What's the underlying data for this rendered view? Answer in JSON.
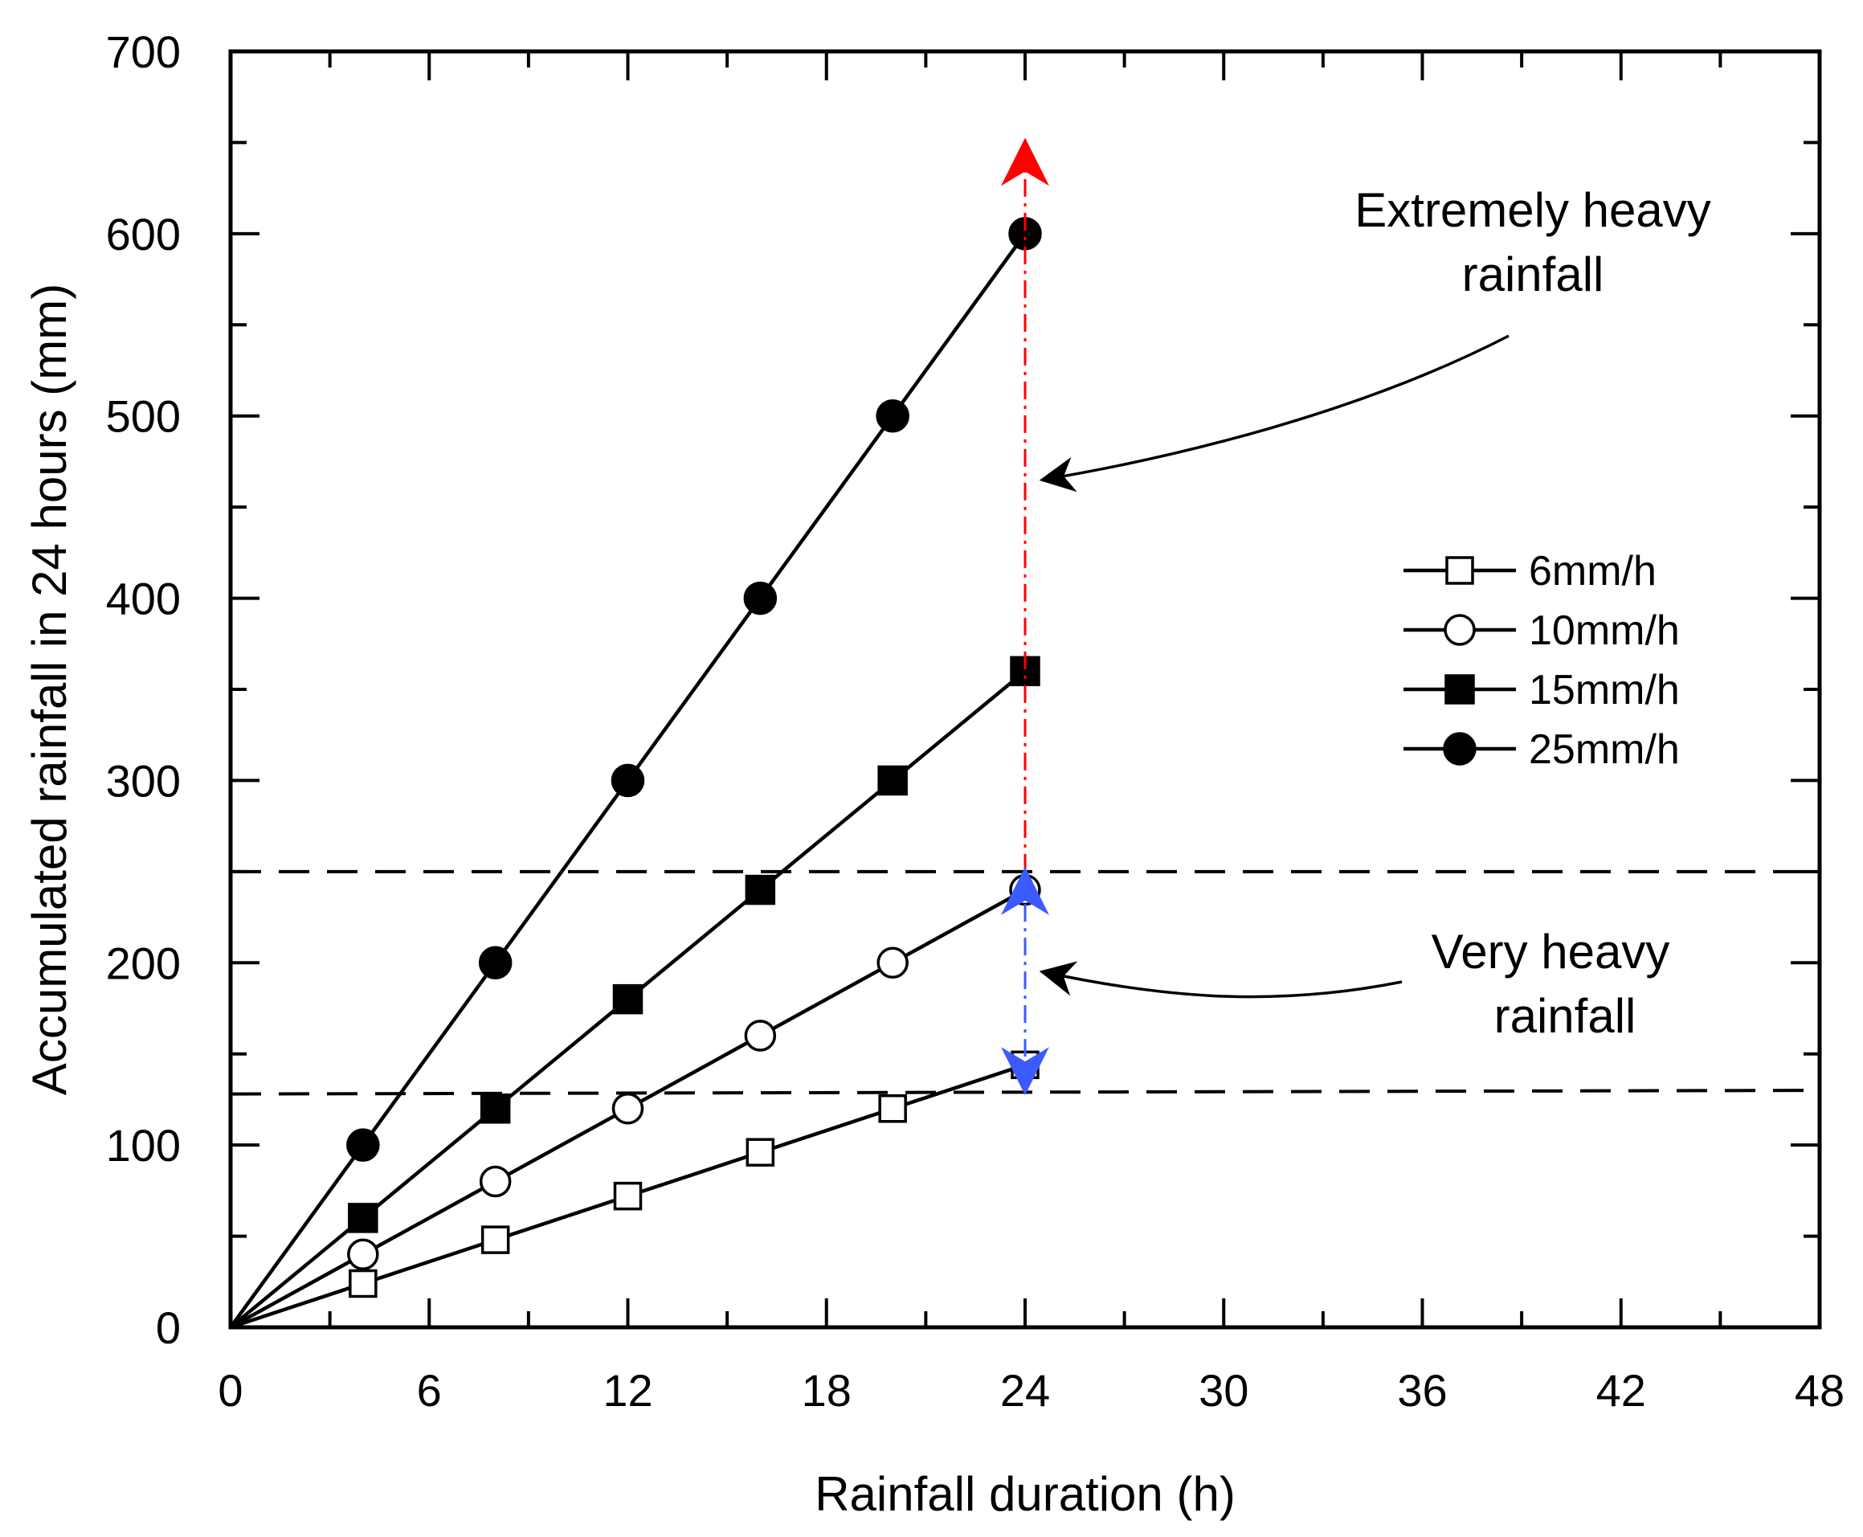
{
  "chart_data": {
    "type": "line",
    "title": "",
    "xlabel": "Rainfall duration (h)",
    "ylabel": "Accumulated rainfall in 24 hours (mm)",
    "xlim": [
      0,
      48
    ],
    "ylim": [
      0,
      700
    ],
    "xticks": [
      0,
      6,
      12,
      18,
      24,
      30,
      36,
      42,
      48
    ],
    "yticks": [
      0,
      100,
      200,
      300,
      400,
      500,
      600,
      700
    ],
    "x_tick_labels": [
      "0",
      "6",
      "12",
      "18",
      "24",
      "30",
      "36",
      "42",
      "48"
    ],
    "y_tick_labels": [
      "0",
      "100",
      "200",
      "300",
      "400",
      "500",
      "600",
      "700"
    ],
    "grid": false,
    "legend_position": "right-middle",
    "series": [
      {
        "name": "6mm/h",
        "marker": "square-open",
        "x": [
          0,
          4,
          8,
          12,
          16,
          20,
          24
        ],
        "values": [
          0,
          24,
          48,
          72,
          96,
          120,
          144
        ]
      },
      {
        "name": "10mm/h",
        "marker": "circle-open",
        "x": [
          0,
          4,
          8,
          12,
          16,
          20,
          24
        ],
        "values": [
          0,
          40,
          80,
          120,
          160,
          200,
          240
        ]
      },
      {
        "name": "15mm/h",
        "marker": "square-filled",
        "x": [
          0,
          4,
          8,
          12,
          16,
          20,
          24
        ],
        "values": [
          0,
          60,
          120,
          180,
          240,
          300,
          360
        ]
      },
      {
        "name": "25mm/h",
        "marker": "circle-filled",
        "x": [
          0,
          4,
          8,
          12,
          16,
          20,
          24
        ],
        "values": [
          0,
          100,
          200,
          300,
          400,
          500,
          600
        ]
      }
    ],
    "reference_lines": [
      {
        "y_start": 250,
        "y_end": 250,
        "style": "dashed",
        "color": "#000000"
      },
      {
        "y_start": 128,
        "y_end": 130,
        "style": "dashed",
        "color": "#000000"
      }
    ],
    "range_arrows": [
      {
        "x": 24,
        "y_from": 250,
        "y_to": 650,
        "color": "#ff0000",
        "style": "dash-dot"
      },
      {
        "x": 24,
        "y_from": 130,
        "y_to": 250,
        "color": "#3b5bff",
        "style": "dash-dot"
      }
    ],
    "annotations": [
      {
        "lines": [
          "Extremely heavy",
          "rainfall"
        ],
        "points_to": {
          "x": 24,
          "y": 465
        }
      },
      {
        "lines": [
          "Very heavy",
          "rainfall"
        ],
        "points_to": {
          "x": 24,
          "y": 195
        }
      }
    ],
    "colors": {
      "axis": "#000000",
      "extreme": "#ff0000",
      "very_heavy": "#3b5bff"
    }
  }
}
